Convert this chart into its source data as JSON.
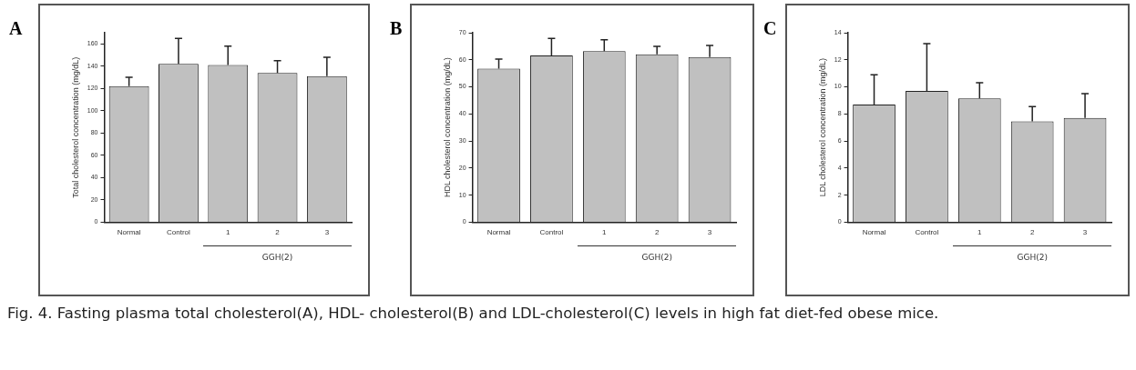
{
  "chart_data": [
    {
      "type": "bar",
      "title": "A",
      "ylabel": "Total cholesterol concentration (mg/dL)",
      "xlabel": "GGH(2)",
      "categories": [
        "Normal",
        "Control",
        "1",
        "2",
        "3"
      ],
      "values": [
        122,
        142,
        141,
        134,
        131
      ],
      "color": "#c0c0c0",
      "errors": [
        [
          122,
          130
        ],
        [
          142,
          165
        ],
        [
          141,
          158
        ],
        [
          134,
          145
        ],
        [
          131,
          148
        ]
      ],
      "ylim": [
        0,
        170
      ],
      "yticks": [
        0,
        20,
        40,
        60,
        80,
        100,
        120,
        140,
        160
      ],
      "grid": false,
      "annotations": [
        "Fig. 4. Fasting plasma total cholesterol(A), HDL- cholesterol(B) and LDL-cholesterol(C) levels in high fat diet-fed obese mice."
      ]
    },
    {
      "type": "bar",
      "title": "B",
      "ylabel": "HDL cholesterol concentration (mg/dL)",
      "xlabel": "GGH(2)",
      "categories": [
        "Normal",
        "Control",
        "1",
        "2",
        "3"
      ],
      "values": [
        56.7,
        61.6,
        63.2,
        62,
        61
      ],
      "color": "#c0c0c0",
      "errors": [
        [
          56.7,
          60.3
        ],
        [
          61.6,
          67.9
        ],
        [
          63.2,
          67.4
        ],
        [
          62,
          65
        ],
        [
          61,
          65.3
        ]
      ],
      "ylim": [
        0,
        70
      ],
      "yticks": [
        0,
        10,
        20,
        30,
        40,
        50,
        60,
        70
      ],
      "grid": false
    },
    {
      "type": "bar",
      "title": "C",
      "ylabel": "LDL cholesterol concentration (mg/dL)",
      "xlabel": "GGH(2)",
      "categories": [
        "Normal",
        "Control",
        "1",
        "2",
        "3"
      ],
      "values": [
        8.7,
        9.7,
        9.15,
        7.45,
        7.7
      ],
      "color": "#c0c0c0",
      "errors": [
        [
          8.7,
          10.9
        ],
        [
          9.7,
          13.2
        ],
        [
          9.15,
          10.3
        ],
        [
          7.45,
          8.55
        ],
        [
          7.7,
          9.5
        ]
      ],
      "ylim": [
        0,
        14
      ],
      "yticks": [
        0,
        2,
        4,
        6,
        8,
        10,
        12,
        14
      ],
      "grid": false
    }
  ]
}
